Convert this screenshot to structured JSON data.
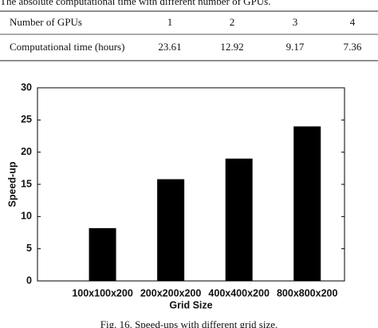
{
  "table_caption": "The absolute computational time with different number of GPUs.",
  "table": {
    "header": [
      "Number of GPUs",
      "1",
      "2",
      "3",
      "4"
    ],
    "rows": [
      [
        "Computational time (hours)",
        23.61,
        12.92,
        9.17,
        7.36
      ]
    ]
  },
  "chart_data": {
    "type": "bar",
    "categories": [
      "100x100x200",
      "200x200x200",
      "400x400x200",
      "800x800x200"
    ],
    "values": [
      8.2,
      15.8,
      19.0,
      24.0
    ],
    "color": "#000000",
    "ylim": [
      0,
      30
    ],
    "yticks": [
      0,
      5,
      10,
      15,
      20,
      25,
      30
    ],
    "x_label": "Grid Size",
    "y_label": "Speed-up"
  },
  "figure_caption": "Fig. 16. Speed-ups with different grid size."
}
